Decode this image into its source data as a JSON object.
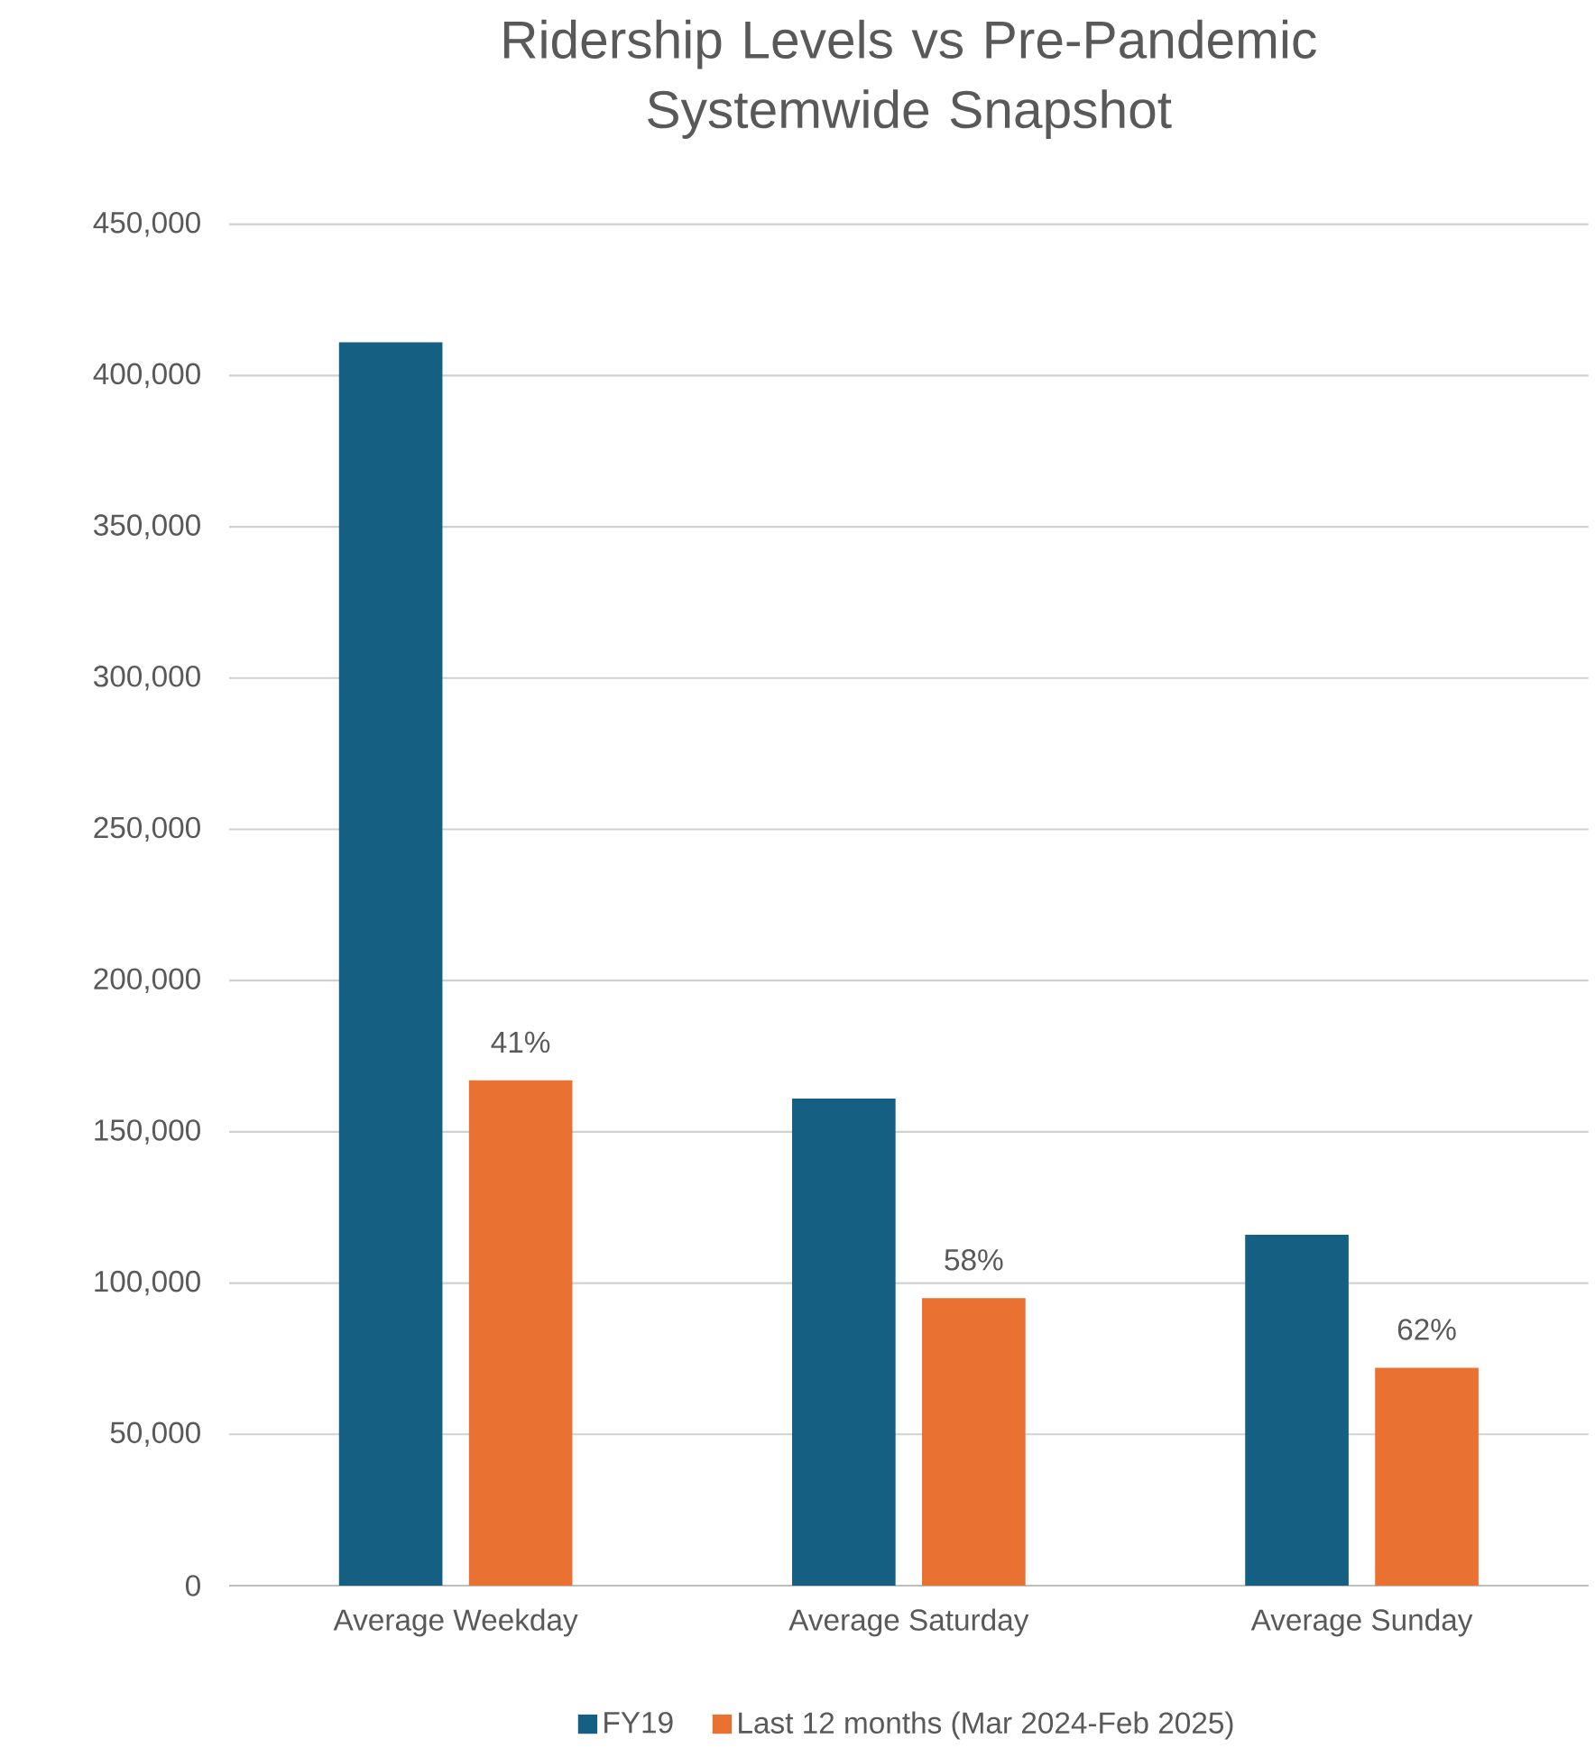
{
  "chart_data": {
    "type": "bar",
    "title": "Ridership Levels vs Pre-Pandemic Systemwide Snapshot",
    "categories": [
      "Average Weekday",
      "Average Saturday",
      "Average Sunday"
    ],
    "series": [
      {
        "name": "FY19",
        "color": "#156082",
        "values": [
          411000,
          161000,
          116000
        ]
      },
      {
        "name": "Last 12 months (Mar 2024-Feb 2025)",
        "color": "#e97132",
        "values": [
          167000,
          95000,
          72000
        ]
      }
    ],
    "annotations": [
      "41%",
      "58%",
      "62%"
    ],
    "ylim": [
      0,
      450000
    ],
    "yticks": [
      {
        "value": 0,
        "label": "0"
      },
      {
        "value": 50000,
        "label": "50,000"
      },
      {
        "value": 100000,
        "label": "100,000"
      },
      {
        "value": 150000,
        "label": "150,000"
      },
      {
        "value": 200000,
        "label": "200,000"
      },
      {
        "value": 250000,
        "label": "250,000"
      },
      {
        "value": 300000,
        "label": "300,000"
      },
      {
        "value": 350000,
        "label": "350,000"
      },
      {
        "value": 400000,
        "label": "400,000"
      },
      {
        "value": 450000,
        "label": "450,000"
      }
    ],
    "grid": "y",
    "legend": "bottom"
  }
}
